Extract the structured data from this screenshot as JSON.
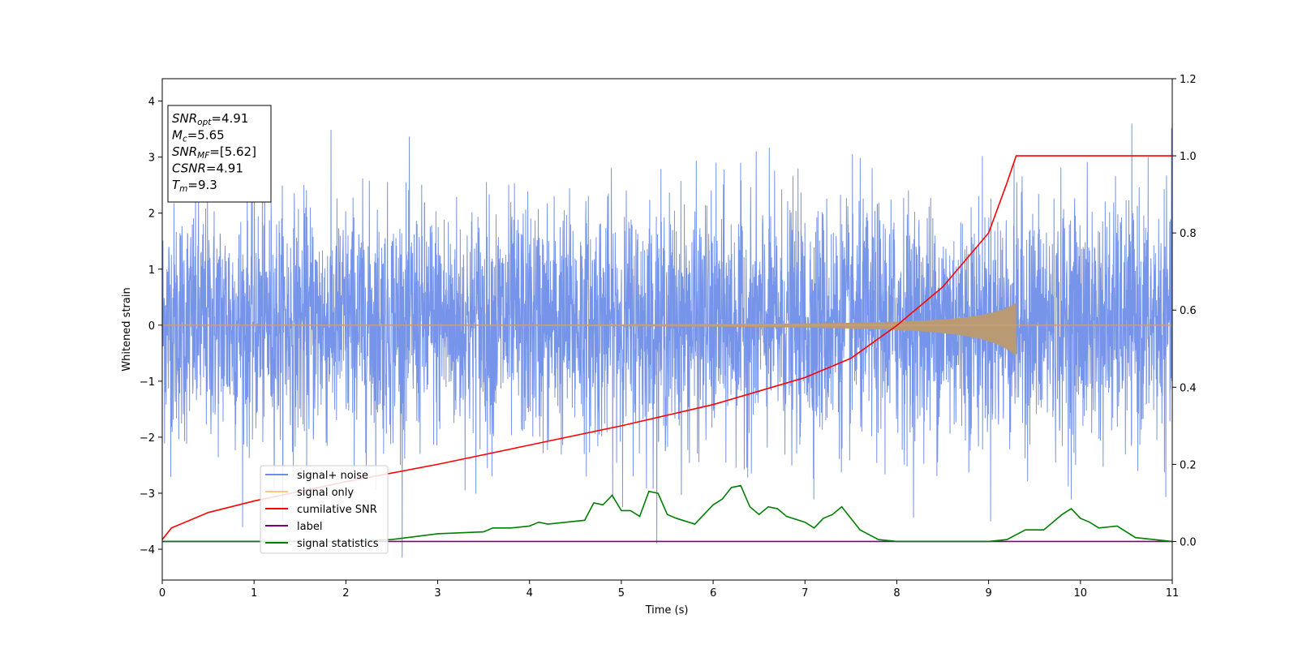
{
  "chart_data": {
    "type": "line",
    "title": "",
    "xlabel": "Time (s)",
    "ylabel": "Whitened strain",
    "y2label": "",
    "xlim": [
      0,
      11
    ],
    "ylim": [
      -4.55,
      4.4
    ],
    "y2lim": [
      -0.1,
      1.2
    ],
    "xticks": [
      0,
      1,
      2,
      3,
      4,
      5,
      6,
      7,
      8,
      9,
      10,
      11
    ],
    "yticks": [
      -4,
      -3,
      -2,
      -1,
      0,
      1,
      2,
      3,
      4
    ],
    "y2ticks": [
      "0.0",
      "0.2",
      "0.4",
      "0.6",
      "0.8",
      "1.0",
      "1.2"
    ],
    "grid": false,
    "legend_position": "lower-left",
    "series": [
      {
        "name": "signal+ noise",
        "axis": "left",
        "color": "#6f8ee8",
        "description_range": [
          -4.15,
          3.6
        ],
        "typical_envelope": [
          -1.8,
          2.0
        ]
      },
      {
        "name": "signal only",
        "axis": "left",
        "color": "#ffc87a",
        "chirp_end_time": 9.3,
        "amplitude_at_end": [
          -0.55,
          0.4
        ]
      },
      {
        "name": "cumilative SNR",
        "axis": "right",
        "color": "#ff0000",
        "x": [
          0,
          0.1,
          0.5,
          1,
          2,
          3,
          4,
          5,
          6,
          6.5,
          7,
          7.5,
          8,
          8.5,
          9,
          9.2,
          9.3,
          11
        ],
        "values": [
          0.005,
          0.035,
          0.075,
          0.105,
          0.155,
          0.2,
          0.25,
          0.3,
          0.355,
          0.39,
          0.425,
          0.475,
          0.56,
          0.66,
          0.8,
          0.93,
          1.0,
          1.0
        ]
      },
      {
        "name": "label",
        "axis": "right",
        "color": "#800080",
        "x": [
          0,
          11
        ],
        "values": [
          0.0,
          0.0
        ]
      },
      {
        "name": "signal statistics",
        "axis": "right",
        "color": "#008000",
        "x": [
          0,
          2,
          2.5,
          3,
          3.5,
          3.6,
          3.8,
          4,
          4.1,
          4.2,
          4.4,
          4.6,
          4.7,
          4.8,
          4.9,
          5.0,
          5.1,
          5.2,
          5.3,
          5.4,
          5.5,
          5.6,
          5.8,
          6.0,
          6.1,
          6.2,
          6.3,
          6.4,
          6.5,
          6.6,
          6.7,
          6.8,
          7.0,
          7.1,
          7.2,
          7.3,
          7.4,
          7.6,
          7.8,
          8.0,
          8.5,
          9.0,
          9.2,
          9.4,
          9.6,
          9.8,
          9.9,
          10.0,
          10.1,
          10.2,
          10.4,
          10.6,
          11
        ],
        "values": [
          0.0,
          0.0,
          0.005,
          0.02,
          0.025,
          0.035,
          0.035,
          0.04,
          0.05,
          0.045,
          0.05,
          0.055,
          0.1,
          0.095,
          0.12,
          0.08,
          0.08,
          0.065,
          0.13,
          0.125,
          0.07,
          0.06,
          0.045,
          0.095,
          0.11,
          0.14,
          0.145,
          0.09,
          0.07,
          0.09,
          0.085,
          0.065,
          0.05,
          0.035,
          0.06,
          0.07,
          0.09,
          0.03,
          0.005,
          0.0,
          0.0,
          0.0,
          0.005,
          0.03,
          0.03,
          0.07,
          0.085,
          0.06,
          0.05,
          0.035,
          0.04,
          0.01,
          0.0
        ]
      }
    ],
    "annotation": {
      "lines": [
        {
          "var": "SNR",
          "sub": "opt",
          "text": "=4.91"
        },
        {
          "var": "M",
          "sub": "c",
          "text": "=5.65"
        },
        {
          "var": "SNR",
          "sub": "MF",
          "text": "=[5.62]"
        },
        {
          "var": "CSNR",
          "sub": "",
          "text": "=4.91"
        },
        {
          "var": "T",
          "sub": "m",
          "text": "=9.3"
        }
      ]
    }
  }
}
